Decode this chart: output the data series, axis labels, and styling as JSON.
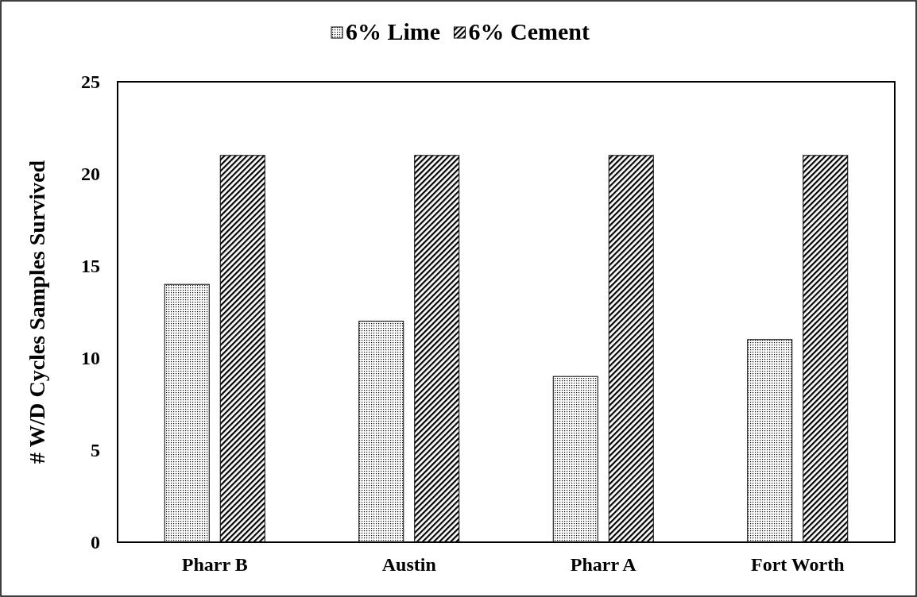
{
  "chart_data": {
    "type": "bar",
    "ylabel": "# W/D Cycles Samples Survived",
    "categories": [
      "Pharr B",
      "Austin",
      "Pharr A",
      "Fort Worth"
    ],
    "series": [
      {
        "name": "6% Lime",
        "color": "#000000",
        "values": [
          14,
          12,
          9,
          11
        ]
      },
      {
        "name": "6% Cement",
        "color": "#000000",
        "values": [
          21,
          21,
          21,
          21
        ]
      }
    ],
    "ylim": [
      0,
      25
    ],
    "yticks": [
      0,
      5,
      10,
      15,
      20,
      25
    ],
    "grid": false,
    "legend": "top"
  }
}
